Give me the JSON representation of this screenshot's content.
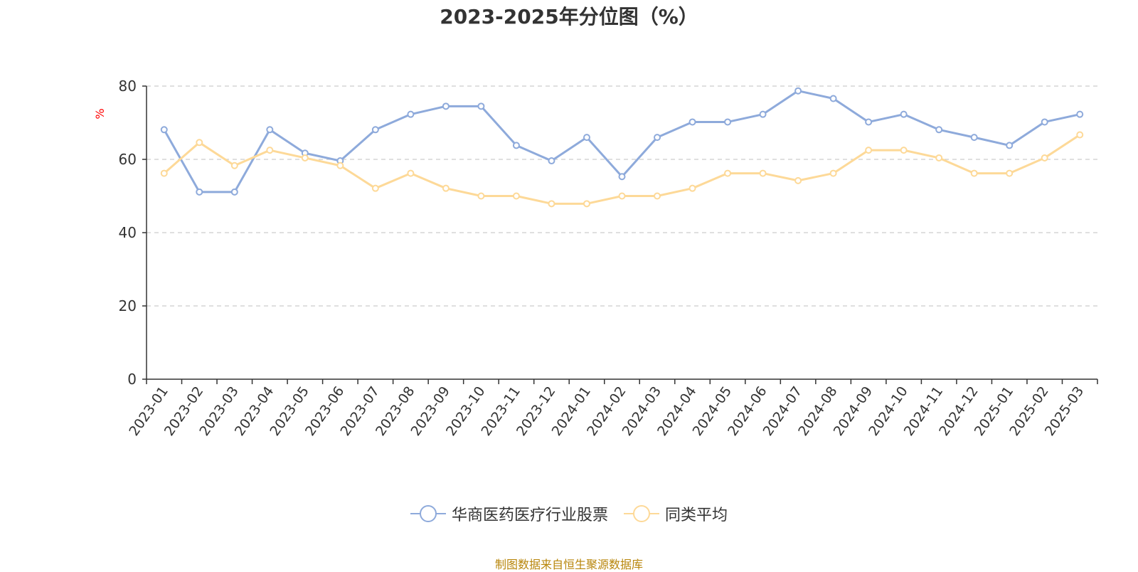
{
  "chart_data": {
    "type": "line",
    "title": "2023-2025年分位图（%）",
    "ylabel": "%",
    "xlabel": "",
    "ylim": [
      0,
      80
    ],
    "yticks": [
      0,
      20,
      40,
      60,
      80
    ],
    "grid": true,
    "legend_position": "bottom",
    "categories": [
      "2023-01",
      "2023-02",
      "2023-03",
      "2023-04",
      "2023-05",
      "2023-06",
      "2023-07",
      "2023-08",
      "2023-09",
      "2023-10",
      "2023-11",
      "2023-12",
      "2024-01",
      "2024-02",
      "2024-03",
      "2024-04",
      "2024-05",
      "2024-06",
      "2024-07",
      "2024-08",
      "2024-09",
      "2024-10",
      "2024-11",
      "2024-12",
      "2025-01",
      "2025-02",
      "2025-03"
    ],
    "series": [
      {
        "name": "华商医药医疗行业股票",
        "color": "#8EAADB",
        "values": [
          68.1,
          51.1,
          51.1,
          68.1,
          61.7,
          59.6,
          68.1,
          72.3,
          74.5,
          74.5,
          63.8,
          59.6,
          66.0,
          55.3,
          66.0,
          70.2,
          70.2,
          72.3,
          78.7,
          76.6,
          70.2,
          72.3,
          68.1,
          66.0,
          63.8,
          70.2,
          72.3
        ]
      },
      {
        "name": "同类平均",
        "color": "#FDD998",
        "values": [
          56.2,
          64.6,
          58.3,
          62.5,
          60.4,
          58.3,
          52.1,
          56.2,
          52.1,
          50.0,
          50.0,
          47.9,
          47.9,
          50.0,
          50.0,
          52.1,
          56.2,
          56.2,
          54.2,
          56.2,
          62.5,
          62.5,
          60.4,
          56.2,
          56.2,
          60.4,
          66.7
        ]
      }
    ]
  },
  "source_note": "制图数据来自恒生聚源数据库",
  "colors": {
    "axis": "#333333",
    "grid": "#cccccc",
    "ylabel": "#ff0000",
    "source_note": "#b8860b"
  }
}
